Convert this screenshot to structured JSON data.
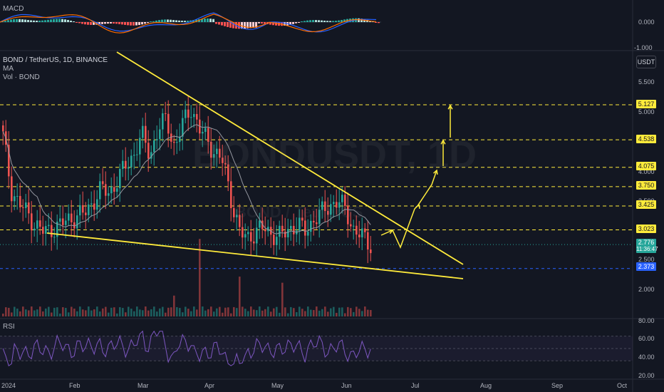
{
  "macd_panel": {
    "title": "MACD",
    "zero_label": "0.000",
    "bottom_label": "-1.000"
  },
  "main_panel": {
    "symbol_line": "BOND / TetherUS, 1D, BINANCE",
    "indicator_ma": "MA",
    "indicator_vol": "Vol · BOND",
    "currency_badge": "USDT",
    "watermark_big": "BONDUSDT, 1D",
    "watermark_small": "BOND / TetherUS"
  },
  "rsi_panel": {
    "title": "RSI"
  },
  "price_axis": {
    "ticks": [
      "5.500",
      "5.000",
      "4.000",
      "3.500",
      "2.500",
      "2.000"
    ],
    "level_tags": [
      "5.127",
      "4.538",
      "4.075",
      "3.750",
      "3.425",
      "3.023"
    ],
    "current_price": "2.776",
    "countdown": "11:36:47",
    "support_tag": "2.373"
  },
  "rsi_axis": {
    "ticks": [
      "80.00",
      "60.00",
      "40.00",
      "20.00"
    ]
  },
  "time_axis": {
    "labels": [
      "2024",
      "Feb",
      "Mar",
      "Apr",
      "May",
      "Jun",
      "Jul",
      "Aug",
      "Sep",
      "Oct"
    ]
  },
  "colors": {
    "background": "#131722",
    "up": "#26a69a",
    "down": "#ef5350",
    "annotation": "#ffeb3b",
    "ma": "#9598a1",
    "rsi": "#7e57c2",
    "support": "#2962ff"
  },
  "chart_data": {
    "type": "candlestick",
    "series_ma_label": "MA",
    "price_levels": [
      5.127,
      4.538,
      4.075,
      3.75,
      3.425,
      3.023
    ],
    "support_level": 2.373,
    "current_price": 2.776,
    "approx_closes": [
      4.6,
      3.7,
      3.45,
      3.3,
      3.1,
      2.98,
      3.05,
      3.1,
      3.2,
      3.25,
      3.3,
      3.5,
      3.7,
      3.65,
      3.85,
      4.1,
      4.3,
      4.6,
      4.3,
      4.7,
      4.9,
      4.4,
      4.8,
      5.1,
      4.7,
      4.55,
      4.3,
      4.15,
      3.5,
      2.95,
      2.9,
      3.0,
      3.05,
      2.95,
      2.9,
      3.05,
      3.1,
      3.0,
      3.2,
      3.3,
      3.45,
      3.5,
      3.35,
      3.0,
      2.9,
      2.78
    ],
    "rsi_range": [
      20,
      80
    ]
  }
}
